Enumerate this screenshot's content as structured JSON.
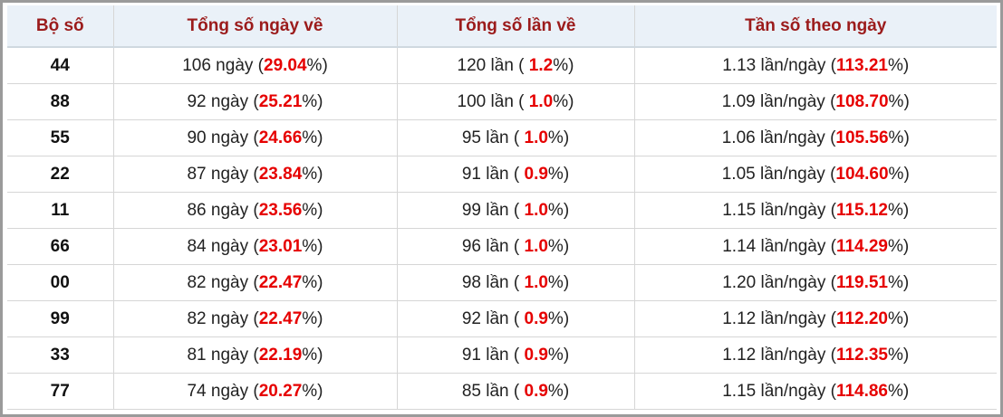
{
  "table": {
    "header": [
      "Bộ số",
      "Tổng số ngày về",
      "Tổng số lần về",
      "Tần số theo ngày"
    ],
    "rows": [
      [
        "44",
        [
          "106 ngày (",
          "29.04",
          "%)"
        ],
        [
          "120 lần ( ",
          "1.2",
          "%)"
        ],
        [
          "1.13 lần/ngày (",
          "113.21",
          "%)"
        ]
      ],
      [
        "88",
        [
          "92 ngày (",
          "25.21",
          "%)"
        ],
        [
          "100 lần ( ",
          "1.0",
          "%)"
        ],
        [
          "1.09 lần/ngày (",
          "108.70",
          "%)"
        ]
      ],
      [
        "55",
        [
          "90 ngày (",
          "24.66",
          "%)"
        ],
        [
          "95 lần ( ",
          "1.0",
          "%)"
        ],
        [
          "1.06 lần/ngày (",
          "105.56",
          "%)"
        ]
      ],
      [
        "22",
        [
          "87 ngày (",
          "23.84",
          "%)"
        ],
        [
          "91 lần ( ",
          "0.9",
          "%)"
        ],
        [
          "1.05 lần/ngày (",
          "104.60",
          "%)"
        ]
      ],
      [
        "11",
        [
          "86 ngày (",
          "23.56",
          "%)"
        ],
        [
          "99 lần ( ",
          "1.0",
          "%)"
        ],
        [
          "1.15 lần/ngày (",
          "115.12",
          "%)"
        ]
      ],
      [
        "66",
        [
          "84 ngày (",
          "23.01",
          "%)"
        ],
        [
          "96 lần ( ",
          "1.0",
          "%)"
        ],
        [
          "1.14 lần/ngày (",
          "114.29",
          "%)"
        ]
      ],
      [
        "00",
        [
          "82 ngày (",
          "22.47",
          "%)"
        ],
        [
          "98 lần ( ",
          "1.0",
          "%)"
        ],
        [
          "1.20 lần/ngày (",
          "119.51",
          "%)"
        ]
      ],
      [
        "99",
        [
          "82 ngày (",
          "22.47",
          "%)"
        ],
        [
          "92 lần ( ",
          "0.9",
          "%)"
        ],
        [
          "1.12 lần/ngày (",
          "112.20",
          "%)"
        ]
      ],
      [
        "33",
        [
          "81 ngày (",
          "22.19",
          "%)"
        ],
        [
          "91 lần ( ",
          "0.9",
          "%)"
        ],
        [
          "1.12 lần/ngày (",
          "112.35",
          "%)"
        ]
      ],
      [
        "77",
        [
          "74 ngày (",
          "20.27",
          "%)"
        ],
        [
          "85 lần ( ",
          "0.9",
          "%)"
        ],
        [
          "1.15 lần/ngày (",
          "114.86",
          "%)"
        ]
      ]
    ]
  }
}
